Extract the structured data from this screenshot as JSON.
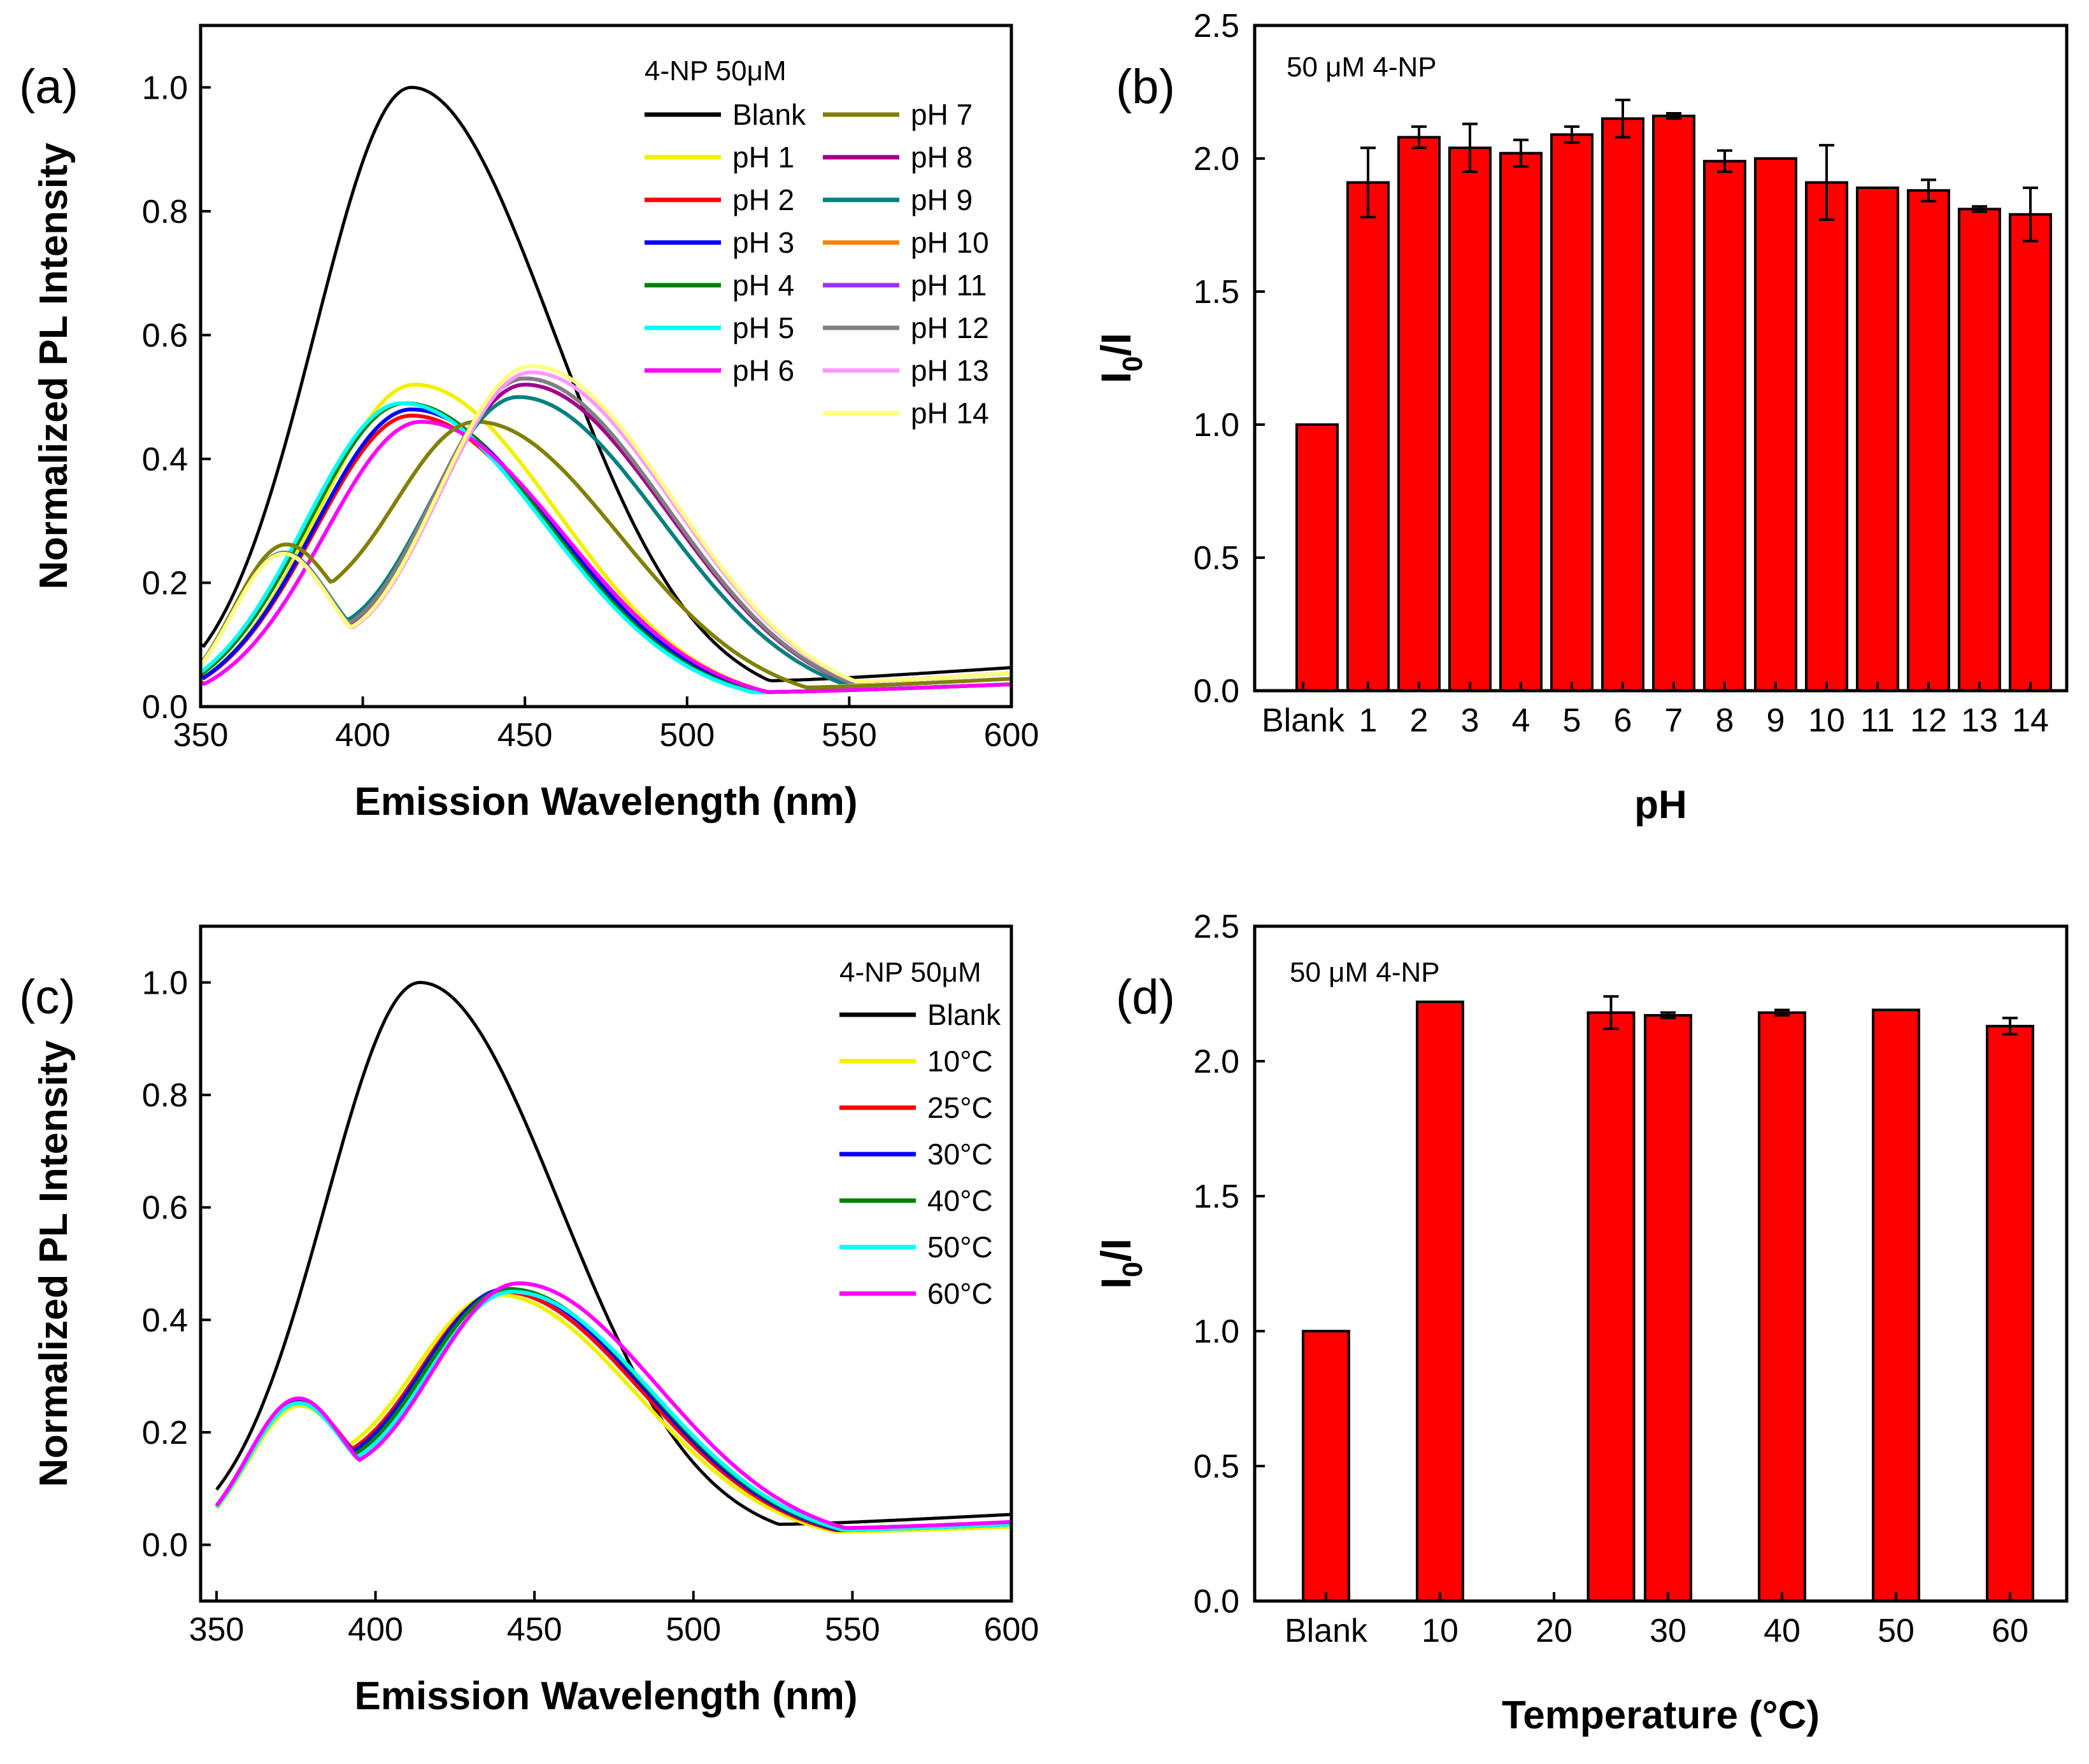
{
  "panels": {
    "a": {
      "label": "(a)",
      "legend_title": "4-NP 50μM"
    },
    "b": {
      "label": "(b)",
      "annotation": "50 μM 4-NP"
    },
    "c": {
      "label": "(c)",
      "legend_title": "4-NP 50μM"
    },
    "d": {
      "label": "(d)",
      "annotation": "50 μM 4-NP"
    }
  },
  "chart_data": [
    {
      "panel": "a",
      "type": "line",
      "xlabel": "Emission Wavelength (nm)",
      "ylabel": "Normalized PL Intensity",
      "xlim": [
        350,
        600
      ],
      "ylim": [
        0,
        1.1
      ],
      "xticks": [
        "350",
        "400",
        "450",
        "500",
        "550",
        "600"
      ],
      "yticks": [
        "0.0",
        "0.2",
        "0.4",
        "0.6",
        "0.8",
        "1.0"
      ],
      "legend_position": "top-right",
      "series": [
        {
          "name": "Blank",
          "color": "#000000",
          "peak_x": 415,
          "peak_y": 1.0,
          "shoulder": 0.0,
          "edge_left": 0.1,
          "edge_right": 0.07
        },
        {
          "name": "pH 1",
          "color": "#f0f000",
          "peak_x": 416,
          "peak_y": 0.52,
          "shoulder": 0.0,
          "edge_left": 0.06,
          "edge_right": 0.04
        },
        {
          "name": "pH 2",
          "color": "#ff0000",
          "peak_x": 415,
          "peak_y": 0.47,
          "shoulder": 0.0,
          "edge_left": 0.05,
          "edge_right": 0.04
        },
        {
          "name": "pH 3",
          "color": "#0000ff",
          "peak_x": 415,
          "peak_y": 0.48,
          "shoulder": 0.0,
          "edge_left": 0.05,
          "edge_right": 0.04
        },
        {
          "name": "pH 4",
          "color": "#008000",
          "peak_x": 413,
          "peak_y": 0.49,
          "shoulder": 0.0,
          "edge_left": 0.05,
          "edge_right": 0.04
        },
        {
          "name": "pH 5",
          "color": "#00ffff",
          "peak_x": 412,
          "peak_y": 0.49,
          "shoulder": 0.0,
          "edge_left": 0.05,
          "edge_right": 0.04
        },
        {
          "name": "pH 6",
          "color": "#ff00ff",
          "peak_x": 418,
          "peak_y": 0.46,
          "shoulder": 0.0,
          "edge_left": 0.04,
          "edge_right": 0.04
        },
        {
          "name": "pH 7",
          "color": "#808000",
          "peak_x": 435,
          "peak_y": 0.46,
          "shoulder": 0.24,
          "edge_left": 0.05,
          "edge_right": 0.05
        },
        {
          "name": "pH 8",
          "color": "#a0008c",
          "peak_x": 450,
          "peak_y": 0.52,
          "shoulder": 0.24,
          "edge_left": 0.05,
          "edge_right": 0.06
        },
        {
          "name": "pH 9",
          "color": "#008080",
          "peak_x": 448,
          "peak_y": 0.5,
          "shoulder": 0.24,
          "edge_left": 0.05,
          "edge_right": 0.06
        },
        {
          "name": "pH 10",
          "color": "#ff8000",
          "peak_x": 450,
          "peak_y": 0.53,
          "shoulder": 0.24,
          "edge_left": 0.05,
          "edge_right": 0.06
        },
        {
          "name": "pH 11",
          "color": "#9b30ff",
          "peak_x": 450,
          "peak_y": 0.53,
          "shoulder": 0.24,
          "edge_left": 0.05,
          "edge_right": 0.06
        },
        {
          "name": "pH 12",
          "color": "#808080",
          "peak_x": 450,
          "peak_y": 0.53,
          "shoulder": 0.24,
          "edge_left": 0.05,
          "edge_right": 0.06
        },
        {
          "name": "pH 13",
          "color": "#ff99ff",
          "peak_x": 452,
          "peak_y": 0.54,
          "shoulder": 0.24,
          "edge_left": 0.05,
          "edge_right": 0.06
        },
        {
          "name": "pH 14",
          "color": "#ffff80",
          "peak_x": 452,
          "peak_y": 0.55,
          "shoulder": 0.24,
          "edge_left": 0.05,
          "edge_right": 0.06
        }
      ]
    },
    {
      "panel": "b",
      "type": "bar",
      "xlabel": "pH",
      "ylabel_main": "I",
      "ylabel_sub": "0",
      "ylabel_tail": "/I",
      "ylim": [
        0,
        2.5
      ],
      "yticks": [
        "0.0",
        "0.5",
        "1.0",
        "1.5",
        "2.0",
        "2.5"
      ],
      "categories": [
        "Blank",
        "1",
        "2",
        "3",
        "4",
        "5",
        "6",
        "7",
        "8",
        "9",
        "10",
        "11",
        "12",
        "13",
        "14"
      ],
      "values": [
        1.0,
        1.91,
        2.08,
        2.04,
        2.02,
        2.09,
        2.15,
        2.16,
        1.99,
        2.0,
        1.91,
        1.89,
        1.88,
        1.81,
        1.79
      ],
      "errors": [
        0.0,
        0.13,
        0.04,
        0.09,
        0.05,
        0.03,
        0.07,
        0.01,
        0.04,
        0.0,
        0.14,
        0.0,
        0.04,
        0.01,
        0.1
      ],
      "bar_color": "#ff0000"
    },
    {
      "panel": "c",
      "type": "line",
      "xlabel": "Emission Wavelength (nm)",
      "ylabel": "Normalized PL Intensity",
      "xlim": [
        345,
        600
      ],
      "ylim": [
        -0.1,
        1.1
      ],
      "xticks": [
        "350",
        "400",
        "450",
        "500",
        "550",
        "600"
      ],
      "yticks": [
        "0.0",
        "0.2",
        "0.4",
        "0.6",
        "0.8",
        "1.0"
      ],
      "legend_position": "top-right",
      "series": [
        {
          "name": "Blank",
          "color": "#000000",
          "peak_x": 414,
          "peak_y": 1.0,
          "shoulder": 0.0,
          "edge_left": 0.08,
          "edge_right": 0.06
        },
        {
          "name": "10°C",
          "color": "#f0f000",
          "peak_x": 438,
          "peak_y": 0.445,
          "shoulder": 0.23,
          "edge_left": 0.05,
          "edge_right": 0.035
        },
        {
          "name": "25°C",
          "color": "#ff0000",
          "peak_x": 440,
          "peak_y": 0.45,
          "shoulder": 0.24,
          "edge_left": 0.05,
          "edge_right": 0.04
        },
        {
          "name": "30°C",
          "color": "#0000ff",
          "peak_x": 441,
          "peak_y": 0.455,
          "shoulder": 0.24,
          "edge_left": 0.05,
          "edge_right": 0.04
        },
        {
          "name": "40°C",
          "color": "#008000",
          "peak_x": 442,
          "peak_y": 0.455,
          "shoulder": 0.24,
          "edge_left": 0.05,
          "edge_right": 0.04
        },
        {
          "name": "50°C",
          "color": "#00ffff",
          "peak_x": 443,
          "peak_y": 0.45,
          "shoulder": 0.24,
          "edge_left": 0.05,
          "edge_right": 0.04
        },
        {
          "name": "60°C",
          "color": "#ff00ff",
          "peak_x": 445,
          "peak_y": 0.465,
          "shoulder": 0.25,
          "edge_left": 0.05,
          "edge_right": 0.045
        }
      ]
    },
    {
      "panel": "d",
      "type": "bar",
      "xlabel": "Temperature (°C)",
      "ylabel_main": "I",
      "ylabel_sub": "0",
      "ylabel_tail": "/I",
      "ylim": [
        0,
        2.5
      ],
      "yticks": [
        "0.0",
        "0.5",
        "1.0",
        "1.5",
        "2.0",
        "2.5"
      ],
      "xticks": [
        {
          "label": "Blank",
          "x": 0
        },
        {
          "label": "10",
          "x": 10
        },
        {
          "label": "20",
          "x": 20
        },
        {
          "label": "30",
          "x": 30
        },
        {
          "label": "40",
          "x": 40
        },
        {
          "label": "50",
          "x": 50
        },
        {
          "label": "60",
          "x": 60
        }
      ],
      "categories": [
        "Blank",
        "10",
        "25",
        "30",
        "40",
        "50",
        "60"
      ],
      "x_values": [
        0,
        10,
        25,
        30,
        40,
        50,
        60
      ],
      "values": [
        1.0,
        2.22,
        2.18,
        2.17,
        2.18,
        2.19,
        2.13
      ],
      "errors": [
        0.0,
        0.0,
        0.06,
        0.01,
        0.01,
        0.0,
        0.03
      ],
      "bar_color": "#ff0000"
    }
  ]
}
